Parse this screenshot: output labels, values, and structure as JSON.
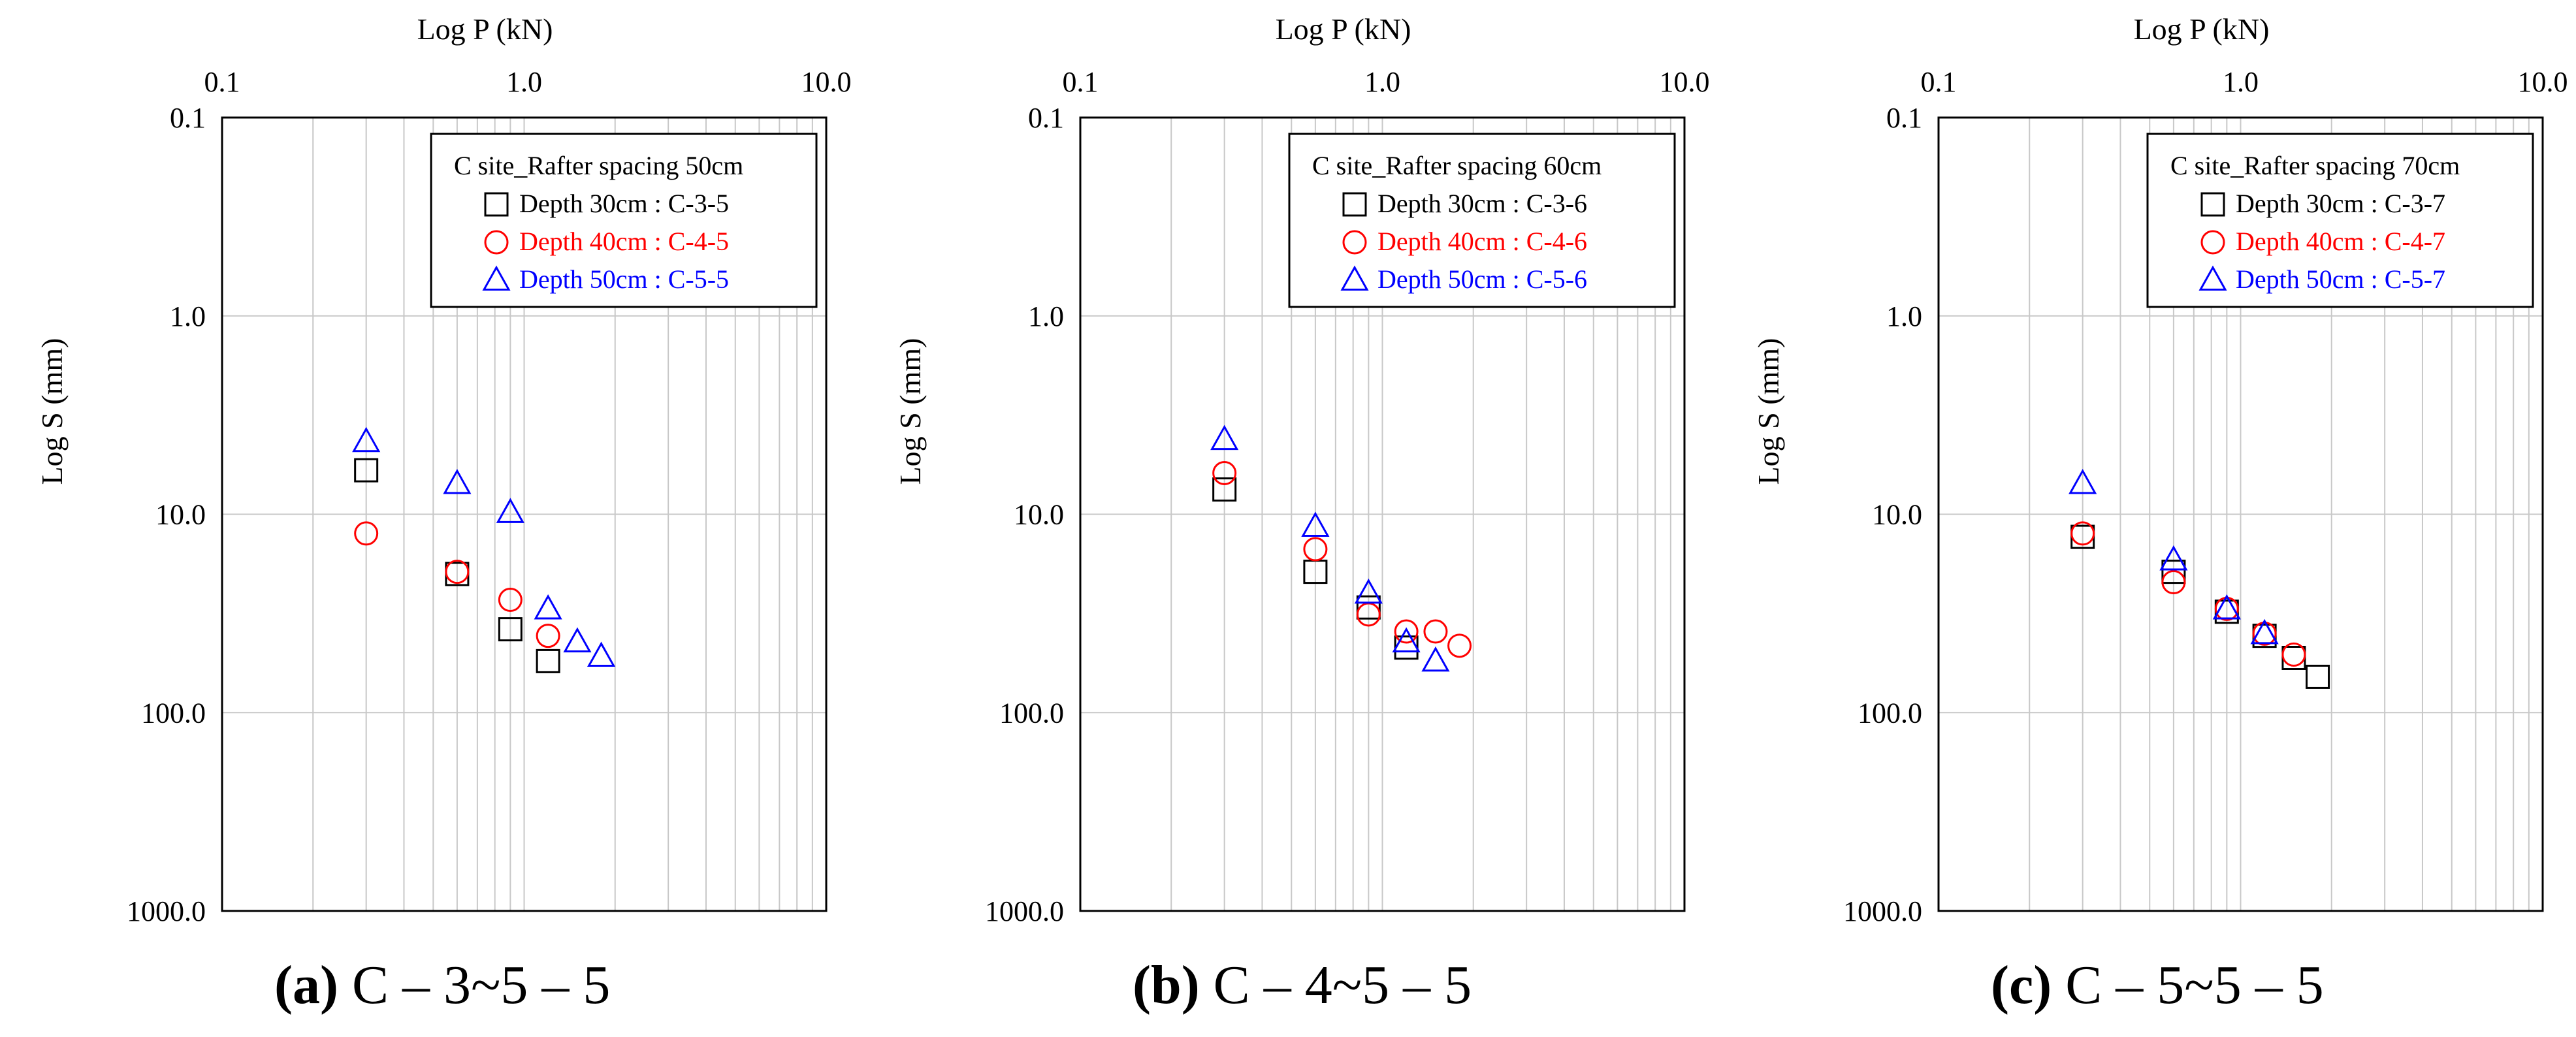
{
  "chart_data": [
    {
      "type": "scatter",
      "id": "a",
      "title": "C site_Rafter spacing  50cm",
      "xlabel": "Log P (kN)",
      "ylabel": "Log S (mm)",
      "xscale": "log",
      "yscale": "log",
      "y_inverted": true,
      "xlim": [
        0.1,
        10.0
      ],
      "ylim": [
        0.1,
        1000.0
      ],
      "x_ticks": [
        "0.1",
        "1.0",
        "10.0"
      ],
      "y_ticks": [
        "0.1",
        "1.0",
        "10.0",
        "100.0",
        "1000.0"
      ],
      "grid": true,
      "legend_position": "top-right",
      "series": [
        {
          "name": "Depth 30cm : C-3-5",
          "color": "#000000",
          "marker": "square",
          "x": [
            0.3,
            0.6,
            0.9,
            1.2
          ],
          "y": [
            6.0,
            20.0,
            38.0,
            55.0
          ]
        },
        {
          "name": "Depth 40cm : C-4-5",
          "color": "#ff0000",
          "marker": "circle",
          "x": [
            0.3,
            0.6,
            0.9,
            1.2
          ],
          "y": [
            12.5,
            19.5,
            27.0,
            41.0
          ]
        },
        {
          "name": "Depth 50cm : C-5-5",
          "color": "#0000ff",
          "marker": "triangle",
          "x": [
            0.3,
            0.6,
            0.9,
            1.2,
            1.5,
            1.8
          ],
          "y": [
            4.3,
            7.0,
            9.8,
            30.0,
            44.0,
            52.0
          ]
        }
      ],
      "caption": {
        "letter": "(a)",
        "text": " C – 3~5 – 5"
      }
    },
    {
      "type": "scatter",
      "id": "b",
      "title": "C site_Rafter spacing  60cm",
      "xlabel": "Log P (kN)",
      "ylabel": "Log S (mm)",
      "xscale": "log",
      "yscale": "log",
      "y_inverted": true,
      "xlim": [
        0.1,
        10.0
      ],
      "ylim": [
        0.1,
        1000.0
      ],
      "x_ticks": [
        "0.1",
        "1.0",
        "10.0"
      ],
      "y_ticks": [
        "0.1",
        "1.0",
        "10.0",
        "100.0",
        "1000.0"
      ],
      "grid": true,
      "legend_position": "top-right",
      "series": [
        {
          "name": "Depth 30cm : C-3-6",
          "color": "#000000",
          "marker": "square",
          "x": [
            0.3,
            0.6,
            0.9,
            1.2
          ],
          "y": [
            7.5,
            19.5,
            29.5,
            47.0
          ]
        },
        {
          "name": "Depth 40cm : C-4-6",
          "color": "#ff0000",
          "marker": "circle",
          "x": [
            0.3,
            0.6,
            0.9,
            1.2,
            1.5,
            1.8
          ],
          "y": [
            6.2,
            15.0,
            32.0,
            39.0,
            39.0,
            46.0
          ]
        },
        {
          "name": "Depth 50cm : C-5-6",
          "color": "#0000ff",
          "marker": "triangle",
          "x": [
            0.3,
            0.6,
            0.9,
            1.2,
            1.5
          ],
          "y": [
            4.2,
            11.5,
            25.0,
            44.0,
            55.0
          ]
        }
      ],
      "caption": {
        "letter": "(b)",
        "text": " C – 4~5 – 5"
      }
    },
    {
      "type": "scatter",
      "id": "c",
      "title": "C site_Rafter spacing  70cm",
      "xlabel": "Log P (kN)",
      "ylabel": "Log S (mm)",
      "xscale": "log",
      "yscale": "log",
      "y_inverted": true,
      "xlim": [
        0.1,
        10.0
      ],
      "ylim": [
        0.1,
        1000.0
      ],
      "x_ticks": [
        "0.1",
        "1.0",
        "10.0"
      ],
      "y_ticks": [
        "0.1",
        "1.0",
        "10.0",
        "100.0",
        "1000.0"
      ],
      "grid": true,
      "legend_position": "top-right",
      "series": [
        {
          "name": "Depth 30cm : C-3-7",
          "color": "#000000",
          "marker": "square",
          "x": [
            0.3,
            0.6,
            0.9,
            1.2,
            1.5,
            1.8
          ],
          "y": [
            13.0,
            19.5,
            31.0,
            41.0,
            53.0,
            66.0
          ]
        },
        {
          "name": "Depth 40cm : C-4-7",
          "color": "#ff0000",
          "marker": "circle",
          "x": [
            0.3,
            0.6,
            0.9,
            1.2,
            1.5
          ],
          "y": [
            12.5,
            22.0,
            30.0,
            40.0,
            51.0
          ]
        },
        {
          "name": "Depth 50cm : C-5-7",
          "color": "#0000ff",
          "marker": "triangle",
          "x": [
            0.3,
            0.6,
            0.9,
            1.2
          ],
          "y": [
            7.0,
            17.0,
            30.0,
            40.0
          ]
        }
      ],
      "caption": {
        "letter": "(c)",
        "text": " C – 5~5 – 5"
      }
    }
  ]
}
